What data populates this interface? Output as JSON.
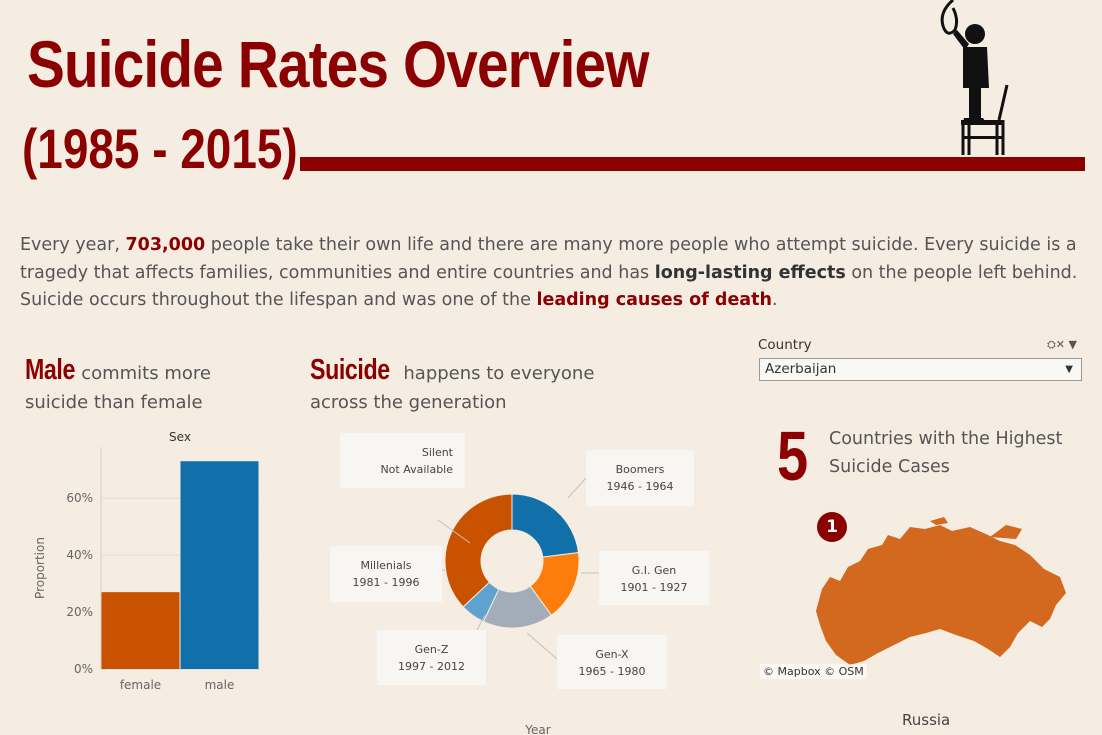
{
  "header": {
    "title": "Suicide Rates Overview",
    "subtitle": "(1985 - 2015)"
  },
  "intro": {
    "p1": "Every year, ",
    "stat": "703,000",
    "p2": " people take their own life and there are many more people who attempt suicide. Every suicide is a tragedy that affects families, communities and entire countries and has ",
    "em1": "long-lasting effects",
    "p3": " on the people left behind. Suicide occurs throughout the lifespan and was one of the ",
    "em2": "leading causes of death",
    "p4": "."
  },
  "sex_section": {
    "big": "Male",
    "rest1": " commits more",
    "rest2": "suicide than female"
  },
  "gen_section": {
    "big": "Suicide",
    "rest1": " happens to everyone",
    "rest2": "across the generation"
  },
  "filter": {
    "label": "Country",
    "selected": "Azerbaijan"
  },
  "top_countries": {
    "number": "5",
    "text1": "Countries with the Highest",
    "text2": "Suicide Cases",
    "rank": "1",
    "country": "Russia",
    "attribution": "© Mapbox  © OSM"
  },
  "colors": {
    "accent": "#8b0000",
    "female": "#c85200",
    "male": "#1170aa",
    "map_fill": "#d2691e"
  },
  "chart_data": [
    {
      "type": "bar",
      "title": "Sex",
      "categories": [
        "female",
        "male"
      ],
      "values": [
        27,
        73
      ],
      "ylabel": "Proportion",
      "yticks": [
        "0%",
        "20%",
        "40%",
        "60%"
      ],
      "ylim": [
        0,
        78
      ]
    },
    {
      "type": "pie",
      "xlabel": "Year",
      "slices": [
        {
          "name": "Boomers",
          "range": "1946 - 1964",
          "value": 23,
          "color": "#1170aa"
        },
        {
          "name": "G.I. Gen",
          "range": "1901 - 1927",
          "value": 17,
          "color": "#fc7d0b"
        },
        {
          "name": "Gen-X",
          "range": "1965 - 1980",
          "value": 17,
          "color": "#a3acb9"
        },
        {
          "name": "Gen-Z",
          "range": "1997 - 2012",
          "value": 6,
          "color": "#5fa2ce"
        },
        {
          "name": "Millenials",
          "range": "1981 - 1996",
          "value": 37,
          "color": "#c85200"
        },
        {
          "name": "Silent",
          "range": "Not Available",
          "value": 0,
          "color": "#7b848f"
        }
      ]
    }
  ]
}
